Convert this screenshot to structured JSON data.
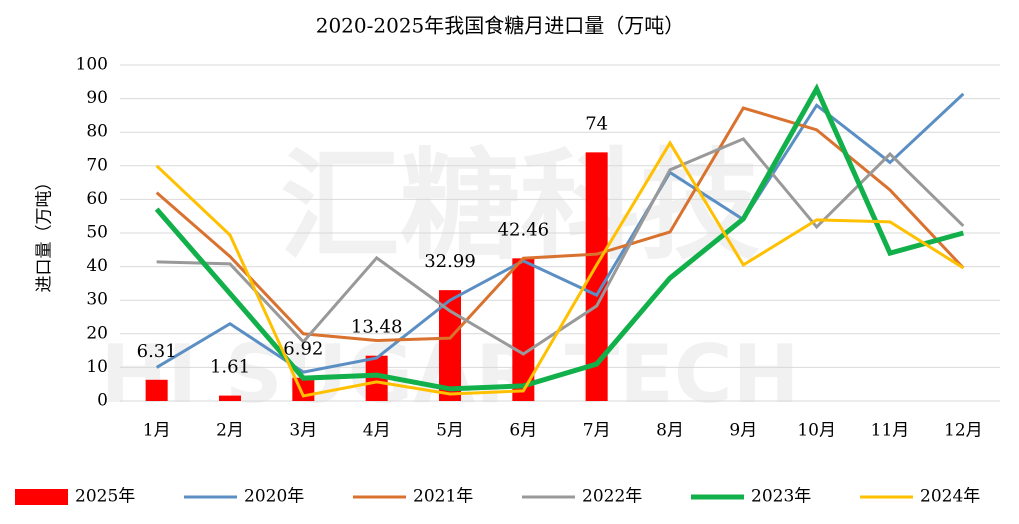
{
  "chart_data": {
    "type": "combo",
    "title": "2020-2025年我国食糖月进口量（万吨）",
    "y_label": "进口量（万吨）",
    "watermark": [
      "汇糖科技",
      "HI SUGAR TECH"
    ],
    "categories": [
      "1月",
      "2月",
      "3月",
      "4月",
      "5月",
      "6月",
      "7月",
      "8月",
      "9月",
      "10月",
      "11月",
      "12月"
    ],
    "ylim": [
      0,
      100
    ],
    "yticks": [
      0,
      10,
      20,
      30,
      40,
      50,
      60,
      70,
      80,
      90,
      100
    ],
    "grid": true,
    "legend": "bottom",
    "series": [
      {
        "name": "2025年",
        "type": "bar",
        "color": "#ff0000",
        "values": [
          6.31,
          1.61,
          6.92,
          13.48,
          32.99,
          42.46,
          74,
          null,
          null,
          null,
          null,
          null
        ]
      },
      {
        "name": "2020年",
        "type": "line",
        "color": "#5b8fc4",
        "values": [
          10,
          23,
          8.6,
          12.8,
          30,
          41.7,
          31.5,
          68,
          54,
          88,
          71,
          91.4
        ]
      },
      {
        "name": "2021年",
        "type": "line",
        "color": "#d9712f",
        "values": [
          62,
          43,
          20,
          18,
          18.7,
          42.5,
          43.7,
          50.3,
          87.2,
          80.7,
          62.8,
          39.6
        ]
      },
      {
        "name": "2022年",
        "type": "line",
        "color": "#999999",
        "values": [
          41.4,
          40.8,
          17.6,
          42.6,
          26.8,
          14,
          28.3,
          68.8,
          78,
          51.8,
          73.5,
          52.1
        ]
      },
      {
        "name": "2023年",
        "type": "line",
        "color": "#11b04a",
        "values": [
          57.1,
          32,
          6.8,
          7.7,
          3.6,
          4.5,
          11,
          36.6,
          54.2,
          92.9,
          44,
          50
        ]
      },
      {
        "name": "2024年",
        "type": "line",
        "color": "#ffc000",
        "values": [
          70,
          49.4,
          1.5,
          5.7,
          2.1,
          3,
          40.5,
          76.8,
          40.5,
          53.9,
          53.3,
          39.6
        ]
      }
    ]
  }
}
